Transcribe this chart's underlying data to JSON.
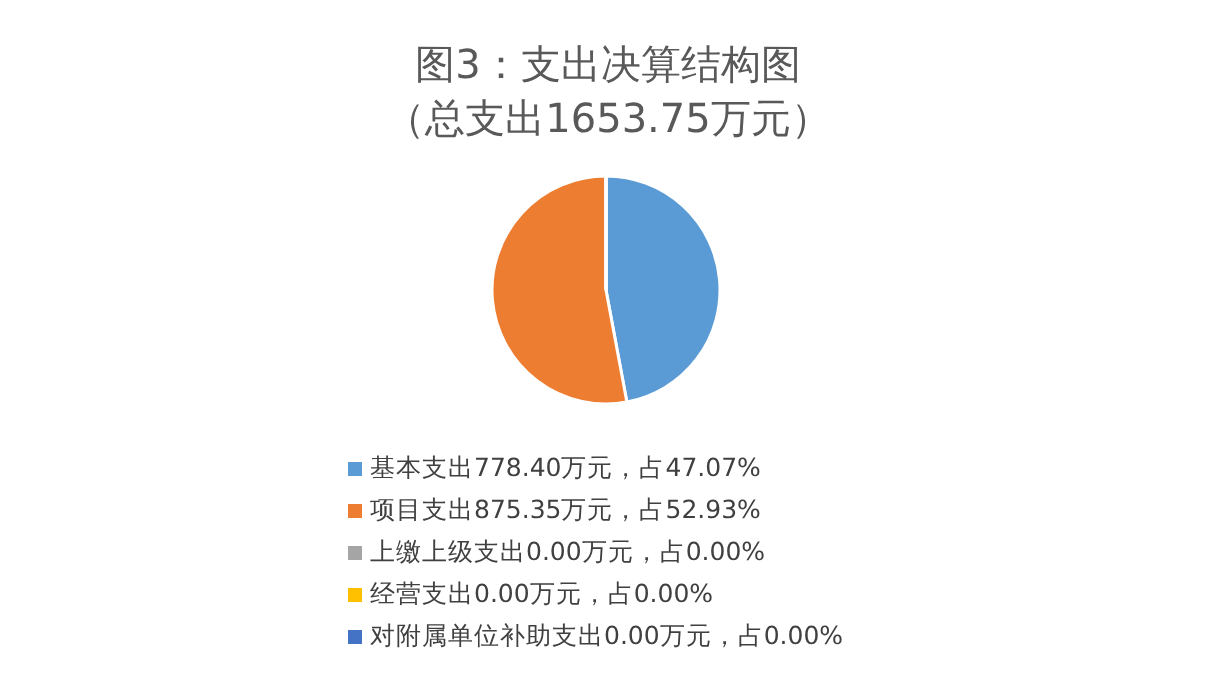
{
  "chart_data": {
    "type": "pie",
    "title": "图3：支出决算结构图",
    "subtitle": "（总支出1653.75万元）",
    "categories": [
      "基本支出778.40万元，占47.07%",
      "项目支出875.35万元，占52.93%",
      "上缴上级支出0.00万元，占0.00%",
      "经营支出0.00万元，占0.00%",
      "对附属单位补助支出0.00万元，占0.00%"
    ],
    "values": [
      778.4,
      875.35,
      0,
      0,
      0
    ],
    "colors": [
      "#5b9bd5",
      "#ed7d31",
      "#a5a5a5",
      "#ffc000",
      "#4472c4"
    ],
    "legend": "bottom"
  }
}
